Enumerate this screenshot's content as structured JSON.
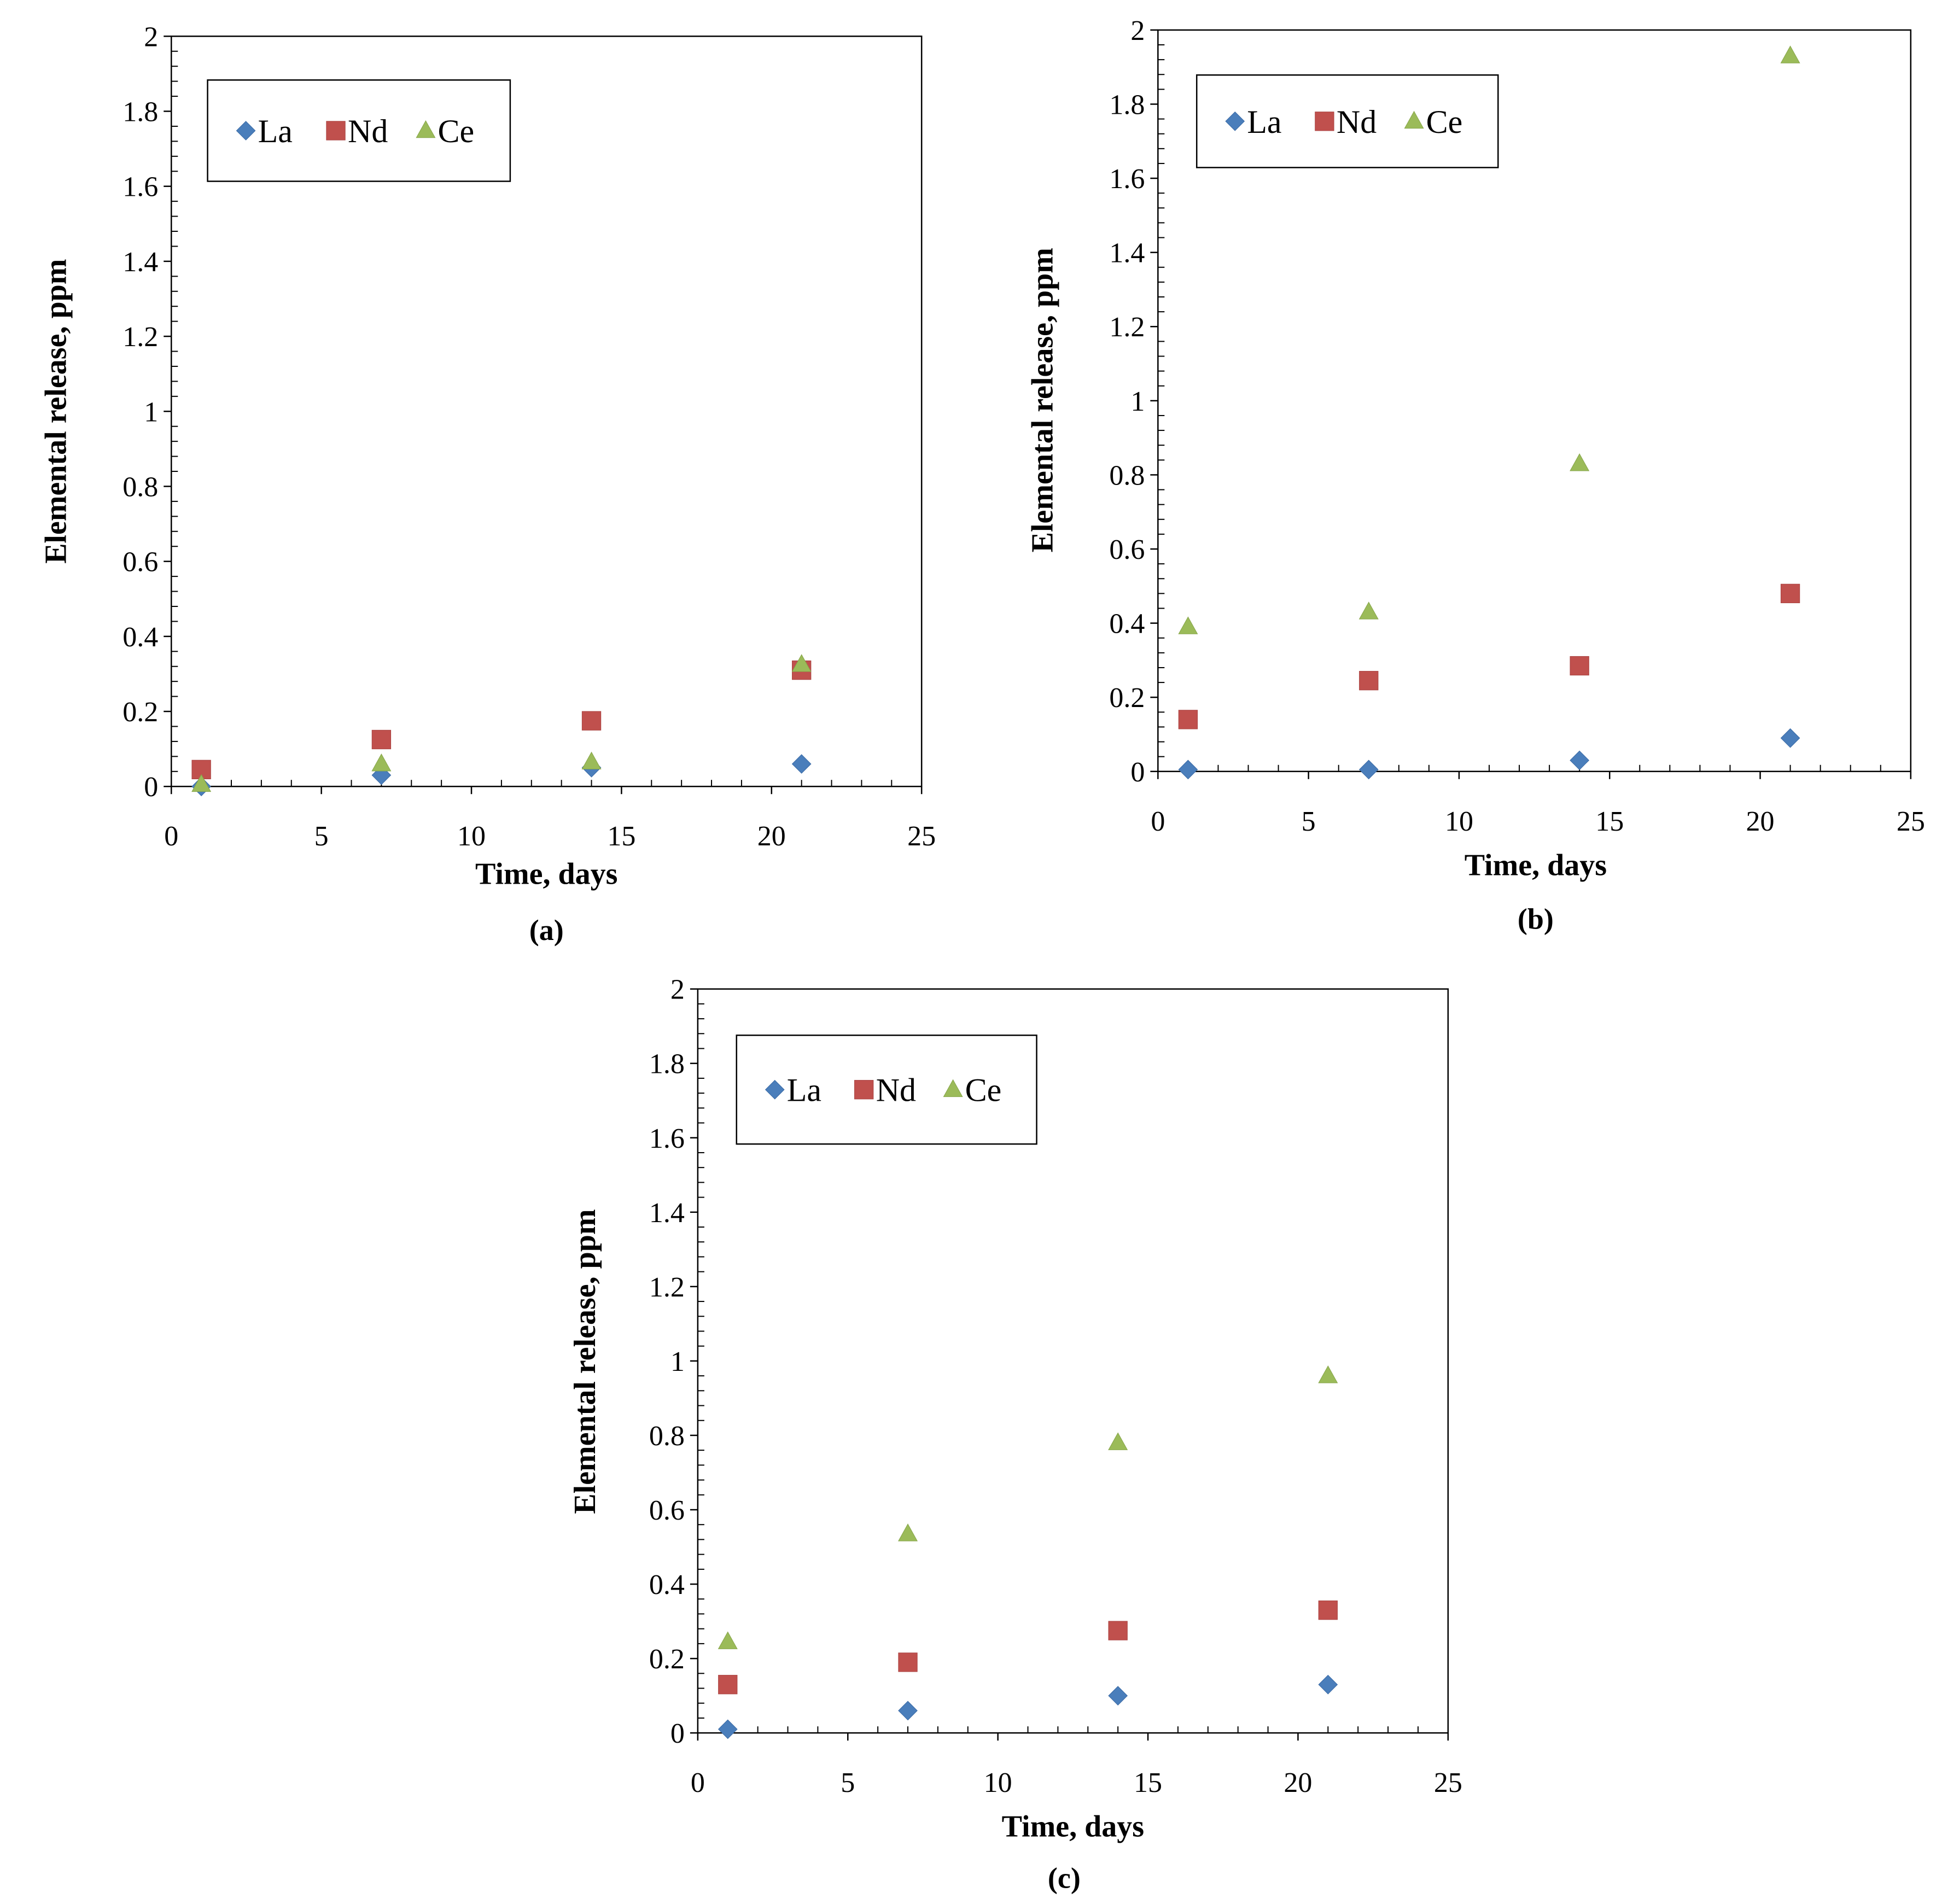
{
  "figure": {
    "series_colors": {
      "La": "#4a7ebb",
      "Nd": "#c0504d",
      "Ce": "#9bbb59"
    },
    "marker_names": {
      "La": "diamond",
      "Nd": "square",
      "Ce": "triangle"
    }
  },
  "chart_data": [
    {
      "type": "scatter",
      "panel": "(a)",
      "caption": "(a)",
      "xlabel": "Time, days",
      "ylabel": "Elemental release, ppm",
      "xlim": [
        0,
        25
      ],
      "ylim": [
        0,
        2
      ],
      "x_ticks": [
        "0",
        "5",
        "10",
        "15",
        "20",
        "25"
      ],
      "y_ticks": [
        "0",
        "0.2",
        "0.4",
        "0.6",
        "0.8",
        "1",
        "1.2",
        "1.4",
        "1.6",
        "1.8",
        "2"
      ],
      "legend": {
        "entries": [
          "La",
          "Nd",
          "Ce"
        ],
        "location": "upper-left"
      },
      "series": [
        {
          "name": "La",
          "x": [
            1,
            7,
            14,
            21
          ],
          "y": [
            0.0,
            0.03,
            0.05,
            0.06
          ]
        },
        {
          "name": "Nd",
          "x": [
            1,
            7,
            14,
            21
          ],
          "y": [
            0.045,
            0.125,
            0.175,
            0.31
          ]
        },
        {
          "name": "Ce",
          "x": [
            1,
            7,
            14,
            21
          ],
          "y": [
            0.005,
            0.06,
            0.065,
            0.325
          ]
        }
      ]
    },
    {
      "type": "scatter",
      "panel": "(b)",
      "caption": "(b)",
      "xlabel": "Time, days",
      "ylabel": "Elemental release, ppm",
      "xlim": [
        0,
        25
      ],
      "ylim": [
        0,
        2
      ],
      "x_ticks": [
        "0",
        "5",
        "10",
        "15",
        "20",
        "25"
      ],
      "y_ticks": [
        "0",
        "0.2",
        "0.4",
        "0.6",
        "0.8",
        "1",
        "1.2",
        "1.4",
        "1.6",
        "1.8",
        "2"
      ],
      "legend": {
        "entries": [
          "La",
          "Nd",
          "Ce"
        ],
        "location": "upper-left"
      },
      "series": [
        {
          "name": "La",
          "x": [
            1,
            7,
            14,
            21
          ],
          "y": [
            0.005,
            0.005,
            0.03,
            0.09
          ]
        },
        {
          "name": "Nd",
          "x": [
            1,
            7,
            14,
            21
          ],
          "y": [
            0.14,
            0.245,
            0.285,
            0.48
          ]
        },
        {
          "name": "Ce",
          "x": [
            1,
            7,
            14,
            21
          ],
          "y": [
            0.39,
            0.43,
            0.83,
            1.93
          ]
        }
      ]
    },
    {
      "type": "scatter",
      "panel": "(c)",
      "caption": "(c)",
      "xlabel": "Time, days",
      "ylabel": "Elemental release, ppm",
      "xlim": [
        0,
        25
      ],
      "ylim": [
        0,
        2
      ],
      "x_ticks": [
        "0",
        "5",
        "10",
        "15",
        "20",
        "25"
      ],
      "y_ticks": [
        "0",
        "0.2",
        "0.4",
        "0.6",
        "0.8",
        "1",
        "1.2",
        "1.4",
        "1.6",
        "1.8",
        "2"
      ],
      "legend": {
        "entries": [
          "La",
          "Nd",
          "Ce"
        ],
        "location": "upper-left"
      },
      "series": [
        {
          "name": "La",
          "x": [
            1,
            7,
            14,
            21
          ],
          "y": [
            0.01,
            0.06,
            0.1,
            0.13
          ]
        },
        {
          "name": "Nd",
          "x": [
            1,
            7,
            14,
            21
          ],
          "y": [
            0.13,
            0.19,
            0.275,
            0.33
          ]
        },
        {
          "name": "Ce",
          "x": [
            1,
            7,
            14,
            21
          ],
          "y": [
            0.245,
            0.535,
            0.78,
            0.96
          ]
        }
      ]
    }
  ]
}
